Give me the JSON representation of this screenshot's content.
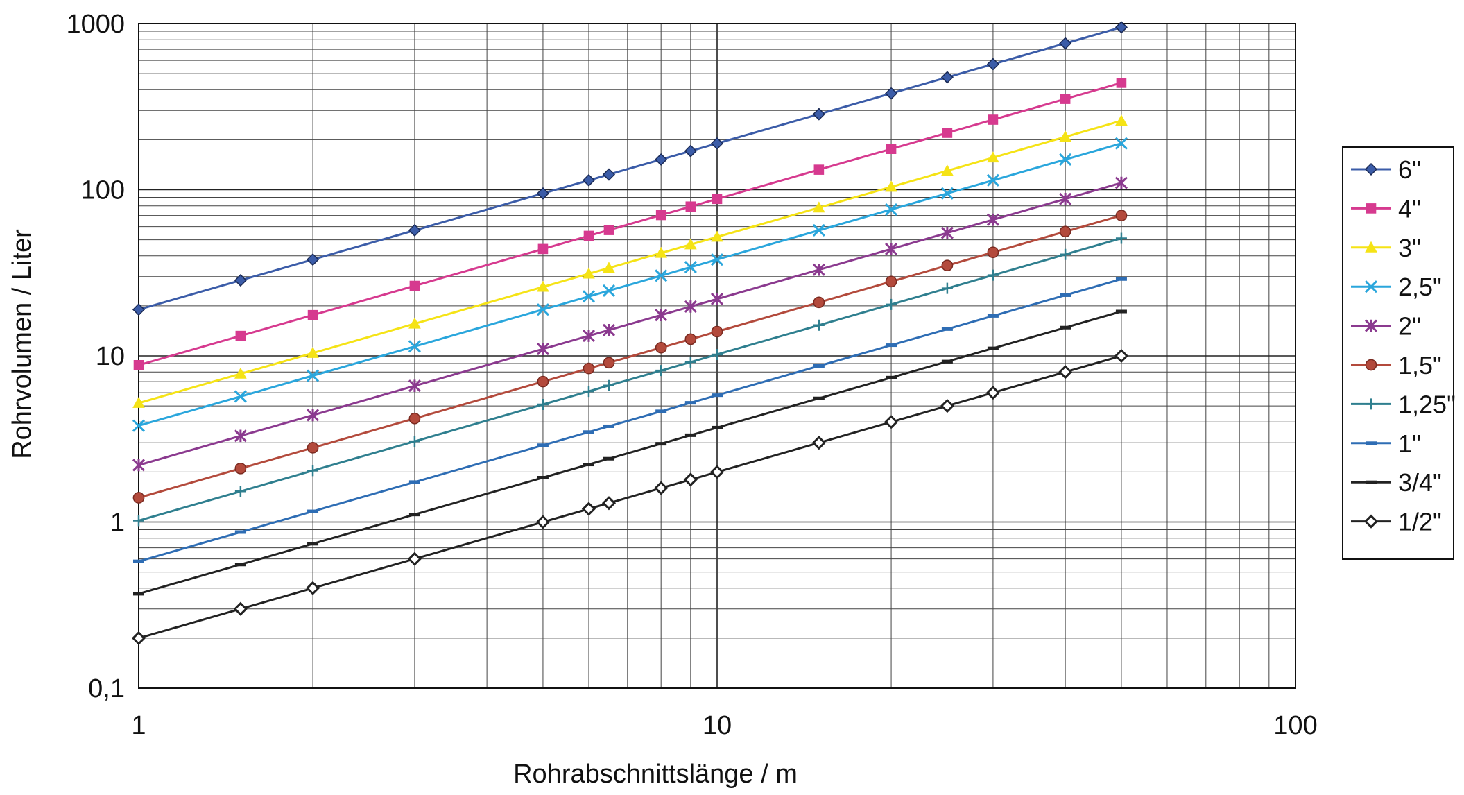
{
  "chart_data": {
    "type": "line",
    "title": "",
    "xlabel": "Rohrabschnittslänge / m",
    "ylabel": "Rohrvolumen / Liter",
    "xscale": "log",
    "yscale": "log",
    "xlim": [
      1,
      100
    ],
    "ylim": [
      0.1,
      1000
    ],
    "x_tick_labels": [
      "1",
      "10",
      "100"
    ],
    "y_tick_labels": [
      "0,1",
      "1",
      "10",
      "100",
      "1000"
    ],
    "grid": true,
    "legend_position": "right",
    "x": [
      1,
      1.5,
      2,
      3,
      5,
      6,
      6.5,
      8,
      9,
      10,
      15,
      20,
      25,
      30,
      40,
      50
    ],
    "series": [
      {
        "name": "6\"",
        "color": "#3b5ca8",
        "marker": "diamond",
        "values": [
          19,
          28.5,
          38,
          57,
          95,
          114,
          123.5,
          152,
          171,
          190,
          285,
          380,
          475,
          570,
          760,
          950
        ]
      },
      {
        "name": "4\"",
        "color": "#d63a8f",
        "marker": "square",
        "values": [
          8.8,
          13.2,
          17.6,
          26.4,
          44,
          52.8,
          57.2,
          70.4,
          79.2,
          88,
          132,
          176,
          220,
          264,
          352,
          440
        ]
      },
      {
        "name": "3\"",
        "color": "#f5e316",
        "marker": "triangle",
        "values": [
          5.2,
          7.8,
          10.4,
          15.6,
          26,
          31.2,
          33.8,
          41.6,
          46.8,
          52,
          78,
          104,
          130,
          156,
          208,
          260
        ]
      },
      {
        "name": "2,5\"",
        "color": "#2aa6dc",
        "marker": "x",
        "values": [
          3.8,
          5.7,
          7.6,
          11.4,
          19,
          22.8,
          24.7,
          30.4,
          34.2,
          38,
          57,
          76,
          95,
          114,
          152,
          190
        ]
      },
      {
        "name": "2\"",
        "color": "#8b3a8f",
        "marker": "star",
        "values": [
          2.2,
          3.3,
          4.4,
          6.6,
          11,
          13.2,
          14.3,
          17.6,
          19.8,
          22,
          33,
          44,
          55,
          66,
          88,
          110
        ]
      },
      {
        "name": "1,5\"",
        "color": "#b34a3c",
        "marker": "circle",
        "values": [
          1.4,
          2.1,
          2.8,
          4.2,
          7,
          8.4,
          9.1,
          11.2,
          12.6,
          14,
          21,
          28,
          35,
          42,
          56,
          70
        ]
      },
      {
        "name": "1,25\"",
        "color": "#2f7f8f",
        "marker": "plus",
        "values": [
          1.02,
          1.53,
          2.04,
          3.06,
          5.1,
          6.12,
          6.63,
          8.16,
          9.18,
          10.2,
          15.3,
          20.4,
          25.5,
          30.6,
          40.8,
          51
        ]
      },
      {
        "name": "1\"",
        "color": "#2e6db4",
        "marker": "dash",
        "values": [
          0.58,
          0.87,
          1.16,
          1.74,
          2.9,
          3.48,
          3.77,
          4.64,
          5.22,
          5.8,
          8.7,
          11.6,
          14.5,
          17.4,
          23.2,
          29
        ]
      },
      {
        "name": "3/4\"",
        "color": "#222222",
        "marker": "dash",
        "values": [
          0.37,
          0.555,
          0.74,
          1.11,
          1.85,
          2.22,
          2.405,
          2.96,
          3.33,
          3.7,
          5.55,
          7.4,
          9.25,
          11.1,
          14.8,
          18.5
        ]
      },
      {
        "name": "1/2\"",
        "color": "#222222",
        "marker": "diamond-open",
        "values": [
          0.2,
          0.3,
          0.4,
          0.6,
          1.0,
          1.2,
          1.3,
          1.6,
          1.8,
          2.0,
          3.0,
          4.0,
          5.0,
          6.0,
          8.0,
          10.0
        ]
      }
    ]
  }
}
